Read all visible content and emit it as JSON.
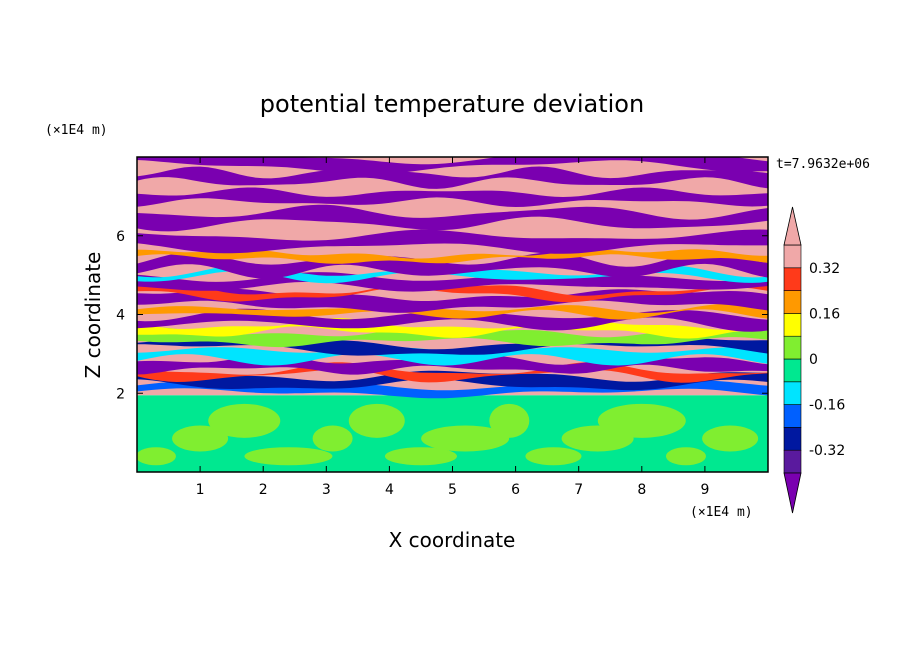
{
  "chart_data": {
    "type": "heatmap",
    "title": "potential temperature deviation",
    "xlabel": "X coordinate",
    "ylabel": "Z coordinate",
    "x_unit": "(×1E4 m)",
    "y_unit": "(×1E4 m)",
    "time_label": "t=7.9632e+06",
    "xlim": [
      0,
      10
    ],
    "ylim": [
      0,
      8
    ],
    "x_ticks": [
      1,
      2,
      3,
      4,
      5,
      6,
      7,
      8,
      9
    ],
    "y_ticks": [
      2,
      4,
      6
    ],
    "colorbar": {
      "levels": [
        -0.4,
        -0.32,
        -0.24,
        -0.16,
        -0.08,
        0,
        0.08,
        0.16,
        0.24,
        0.32,
        0.4
      ],
      "labels": [
        "0.32",
        "0.16",
        "0",
        "-0.16",
        "-0.32"
      ],
      "label_values": [
        0.32,
        0.16,
        0,
        -0.16,
        -0.32
      ],
      "colors": [
        "#7a00b0",
        "#5a1a9e",
        "#0018a0",
        "#0060ff",
        "#00e4ff",
        "#00e890",
        "#80ee30",
        "#ffff00",
        "#ff9900",
        "#ff3a1a",
        "#f0a8a8"
      ],
      "under_color": "#7a00b0",
      "over_color": "#f0a8a8",
      "extend": "both"
    },
    "grid": false
  }
}
